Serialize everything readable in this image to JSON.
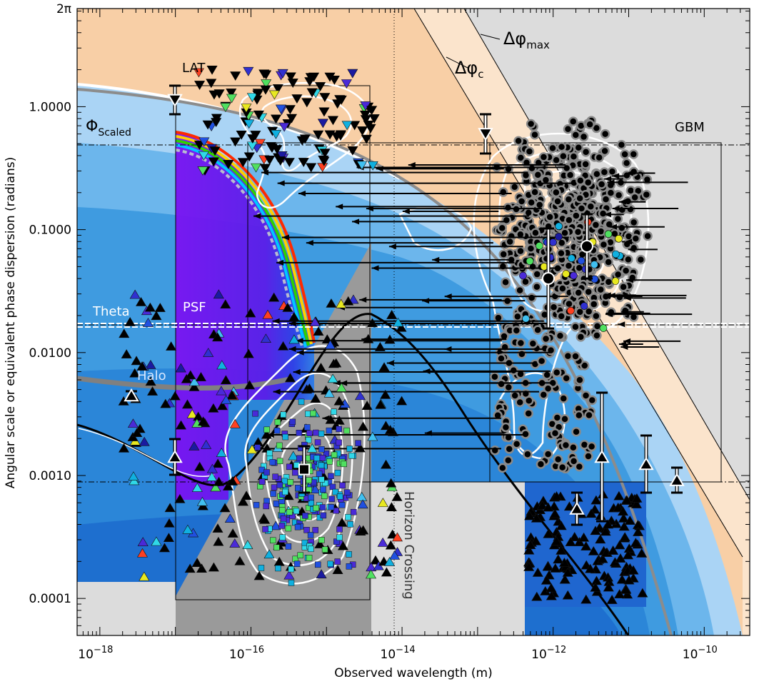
{
  "chart_data": {
    "type": "scatter",
    "title": "",
    "xlabel": "Observed wavelength (m)",
    "ylabel": "Angular scale or equivalent phase dispersion (radians)",
    "xscale": "log",
    "yscale": "log",
    "xlim": [
      5e-19,
      4e-10
    ],
    "ylim": [
      5e-05,
      6.2832
    ],
    "x_ticks": [
      1e-18,
      1e-16,
      1e-14,
      1e-12,
      1e-10
    ],
    "x_tick_labels": [
      {
        "base": "10",
        "exp": "−18"
      },
      {
        "base": "10",
        "exp": "−16"
      },
      {
        "base": "10",
        "exp": "−14"
      },
      {
        "base": "10",
        "exp": "−12"
      },
      {
        "base": "10",
        "exp": "−10"
      }
    ],
    "y_ticks": [
      0.0001,
      0.001,
      0.01,
      0.1,
      1.0,
      6.2832
    ],
    "y_tick_labels": [
      "0.0001",
      "0.0010",
      "0.0100",
      "0.1000",
      "1.0000",
      "2π"
    ],
    "annotations": {
      "lat": "LAT",
      "gbm": "GBM",
      "phi_scaled": "Φ",
      "phi_scaled_sub": "Scaled",
      "theta": "Theta",
      "psf": "PSF",
      "halo": "Halo",
      "horizon": "Horizon Crossing",
      "dphi_max": "Δφ",
      "dphi_max_sub": "max",
      "dphi_c": "Δφ",
      "dphi_c_sub": "c"
    },
    "colors": {
      "background_light_blue": "#aad4f5",
      "mid_blue": "#3f9be0",
      "deep_blue": "#1e6fcf",
      "darkest_blue": "#1050b0",
      "grey_region": "#9a9a9a",
      "light_grey": "#dcdcdc",
      "orange": "#f8cfa6",
      "light_orange": "#fbe4cc",
      "violet": "#7b1ff0"
    },
    "series": [
      {
        "marker": "triangle-down",
        "region": "LAT",
        "x_range": [
          2e-17,
          1e-14
        ],
        "y_range": [
          0.3,
          2.0
        ]
      },
      {
        "marker": "triangle-up",
        "region": "LAT",
        "x_range": [
          2e-18,
          1e-14
        ],
        "y_range": [
          0.00015,
          0.03
        ]
      },
      {
        "marker": "square",
        "region": "LAT",
        "x_range": [
          3e-16,
          5e-15
        ],
        "y_range": [
          0.00013,
          0.003
        ]
      },
      {
        "marker": "circle",
        "region": "GBM",
        "x_range": [
          1e-12,
          2e-10
        ],
        "y_range": [
          0.0001,
          1.0
        ]
      },
      {
        "marker": "triangle-up",
        "region": "GBM",
        "x_range": [
          1.5e-12,
          5e-11
        ],
        "y_range": [
          9e-05,
          0.001
        ]
      }
    ]
  }
}
